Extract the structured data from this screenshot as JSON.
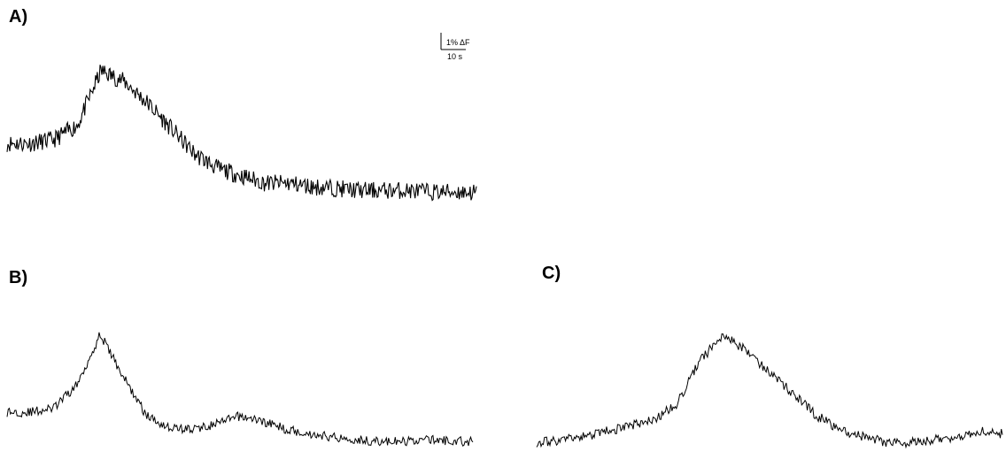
{
  "panels": [
    {
      "label": "A)"
    },
    {
      "label": "B)"
    },
    {
      "label": "C)"
    }
  ],
  "scale_bar": {
    "amplitude_label": "1% ΔF",
    "time_label": "10 s"
  },
  "chart_data": [
    {
      "type": "line",
      "panel": "A)",
      "x": [
        0,
        5,
        10,
        15,
        20,
        25,
        30,
        35,
        40,
        45,
        50,
        55,
        60,
        65,
        70,
        75,
        80,
        85,
        90,
        95,
        100
      ],
      "series": [
        {
          "values": [
            0.0,
            0.0,
            0.05,
            0.25,
            1.0,
            0.85,
            0.55,
            0.2,
            -0.15,
            -0.35,
            -0.45,
            -0.55,
            -0.55,
            -0.6,
            -0.62,
            -0.65,
            -0.65,
            -0.65,
            -0.67,
            -0.67,
            -0.68
          ]
        }
      ],
      "noise_amplitude": 0.12,
      "grid": false
    },
    {
      "type": "line",
      "panel": "B)",
      "x": [
        0,
        5,
        10,
        15,
        20,
        25,
        30,
        35,
        40,
        45,
        50,
        55,
        60,
        65,
        70,
        75,
        80,
        85,
        90,
        95,
        100
      ],
      "series": [
        {
          "values": [
            0.0,
            0.0,
            0.05,
            0.35,
            1.0,
            0.45,
            -0.05,
            -0.2,
            -0.22,
            -0.15,
            -0.05,
            -0.12,
            -0.22,
            -0.28,
            -0.32,
            -0.35,
            -0.38,
            -0.38,
            -0.35,
            -0.37,
            -0.38
          ]
        }
      ],
      "noise_amplitude": 0.06,
      "grid": false
    },
    {
      "type": "line",
      "panel": "C)",
      "x": [
        0,
        5,
        10,
        15,
        20,
        25,
        30,
        35,
        40,
        45,
        50,
        55,
        60,
        65,
        70,
        75,
        80,
        85,
        90,
        95,
        100
      ],
      "series": [
        {
          "values": [
            0.0,
            0.02,
            0.05,
            0.1,
            0.15,
            0.2,
            0.35,
            0.75,
            1.0,
            0.85,
            0.65,
            0.45,
            0.25,
            0.12,
            0.05,
            0.0,
            0.0,
            0.02,
            0.05,
            0.1,
            0.08
          ]
        }
      ],
      "noise_amplitude": 0.045,
      "grid": false
    }
  ]
}
